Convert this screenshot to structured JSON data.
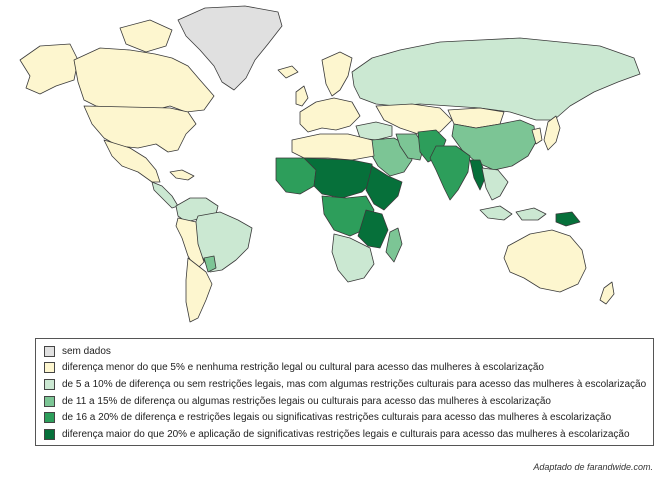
{
  "legend": {
    "items": [
      {
        "category": "no-data",
        "label": "sem dados",
        "color": "#e0e0e0"
      },
      {
        "category": "lt5",
        "label": "diferença menor do que 5% e nenhuma restrição legal ou cultural para acesso das mulheres à escolarização",
        "color": "#fdf6cf"
      },
      {
        "category": "5to10",
        "label": "de 5 a 10% de diferença ou sem restrições legais, mas com algumas restrições culturais para acesso das mulheres à escolarização",
        "color": "#cbe8d2"
      },
      {
        "category": "11to15",
        "label": "de 11 a 15% de diferença ou algumas restrições legais ou culturais para acesso das mulheres à escolarização",
        "color": "#7cc595"
      },
      {
        "category": "16to20",
        "label": "de 16 a 20% de diferença e restrições legais ou significativas restrições culturais para acesso das mulheres à escolarização",
        "color": "#2d9e5b"
      },
      {
        "category": "gt20",
        "label": "diferença maior do que 20% e aplicação de significativas restrições legais e culturais para acesso das mulheres à escolarização",
        "color": "#06703a"
      }
    ]
  },
  "source": "Adaptado de farandwide.com."
}
